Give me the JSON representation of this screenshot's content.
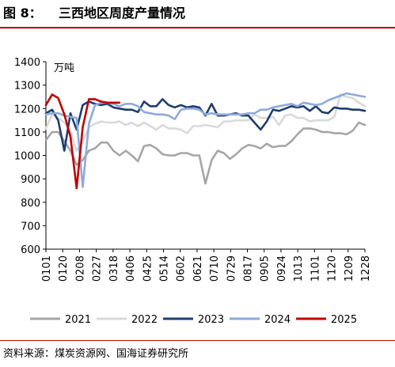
{
  "figure": {
    "label": "图 8：",
    "title": "三西地区周度产量情况",
    "source": "资料来源：煤炭资源网、国海证券研究所"
  },
  "chart_data": {
    "type": "line",
    "unit_label": "万吨",
    "ylim": [
      600,
      1400
    ],
    "yticks": [
      600,
      700,
      800,
      900,
      1000,
      1100,
      1200,
      1300,
      1400
    ],
    "x_tick_labels": [
      "0101",
      "0120",
      "0208",
      "0227",
      "0318",
      "0406",
      "0425",
      "0514",
      "0602",
      "0621",
      "0710",
      "0729",
      "0817",
      "0905",
      "0924",
      "1013",
      "1101",
      "1120",
      "1209",
      "1228"
    ],
    "n_points": 53,
    "grid": false,
    "legend_position": "bottom",
    "series": [
      {
        "name": "2021",
        "color": "#a6a6a6",
        "values": [
          1065,
          1100,
          1100,
          1060,
          1020,
          960,
          980,
          1020,
          1030,
          1055,
          1055,
          1020,
          1000,
          1020,
          1000,
          975,
          1040,
          1045,
          1030,
          1005,
          1000,
          1000,
          1010,
          1010,
          1000,
          1000,
          880,
          980,
          1020,
          1010,
          985,
          1005,
          1030,
          1045,
          1040,
          1030,
          1050,
          1035,
          1040,
          1040,
          1060,
          1090,
          1115,
          1115,
          1110,
          1100,
          1100,
          1095,
          1095,
          1090,
          1105,
          1140,
          1130
        ]
      },
      {
        "name": "2022",
        "color": "#d9d9d9",
        "values": [
          1115,
          1175,
          1160,
          1140,
          1100,
          1020,
          1060,
          1120,
          1135,
          1145,
          1140,
          1140,
          1145,
          1130,
          1140,
          1125,
          1140,
          1125,
          1110,
          1130,
          1115,
          1115,
          1110,
          1095,
          1125,
          1125,
          1130,
          1125,
          1120,
          1145,
          1145,
          1150,
          1150,
          1150,
          1175,
          1160,
          1160,
          1165,
          1130,
          1170,
          1175,
          1160,
          1160,
          1145,
          1150,
          1150,
          1150,
          1165,
          1260,
          1250,
          1245,
          1225,
          1210
        ]
      },
      {
        "name": "2023",
        "color": "#1f3d6e",
        "values": [
          1180,
          1195,
          1150,
          1020,
          1180,
          1110,
          1215,
          1230,
          1220,
          1215,
          1220,
          1205,
          1200,
          1195,
          1195,
          1185,
          1230,
          1210,
          1210,
          1240,
          1215,
          1205,
          1215,
          1205,
          1210,
          1205,
          1170,
          1220,
          1170,
          1170,
          1175,
          1180,
          1170,
          1170,
          1140,
          1110,
          1145,
          1195,
          1190,
          1200,
          1210,
          1205,
          1210,
          1190,
          1210,
          1185,
          1180,
          1205,
          1200,
          1200,
          1195,
          1195,
          1190
        ]
      },
      {
        "name": "2024",
        "color": "#8eaadb",
        "values": [
          1175,
          1180,
          1180,
          1170,
          1165,
          1160,
          865,
          1135,
          1215,
          1225,
          1225,
          1220,
          1210,
          1220,
          1220,
          1210,
          1185,
          1180,
          1175,
          1175,
          1170,
          1155,
          1195,
          1200,
          1200,
          1195,
          1175,
          1180,
          1175,
          1175,
          1175,
          1175,
          1175,
          1180,
          1180,
          1195,
          1195,
          1205,
          1210,
          1215,
          1220,
          1210,
          1225,
          1220,
          1215,
          1220,
          1235,
          1245,
          1255,
          1265,
          1260,
          1255,
          1250
        ]
      },
      {
        "name": "2025",
        "color": "#c00000",
        "values": [
          1215,
          1260,
          1245,
          1175,
          1080,
          860,
          1120,
          1240,
          1240,
          1230,
          1225,
          1225,
          1225
        ]
      }
    ]
  }
}
